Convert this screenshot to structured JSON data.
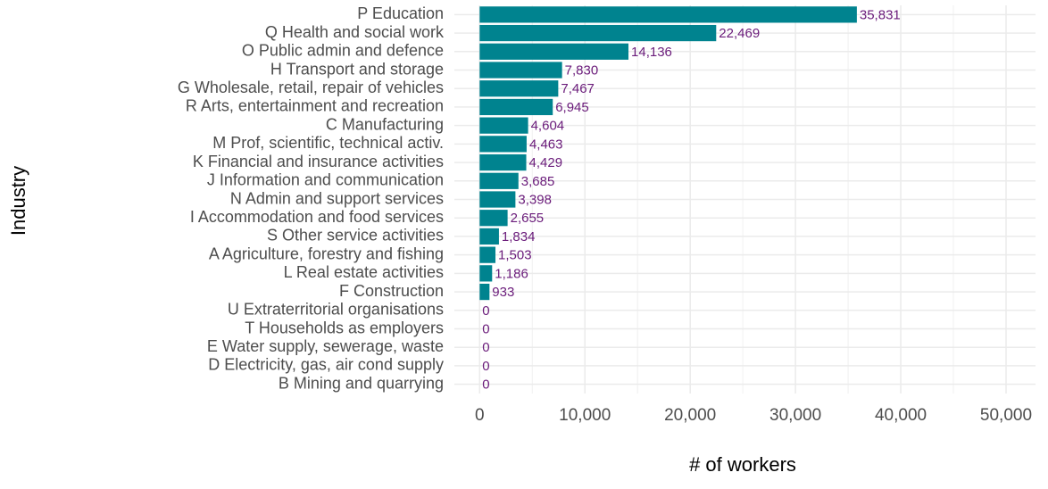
{
  "chart_data": {
    "type": "barh",
    "xlabel": "# of workers",
    "ylabel": "Industry",
    "categories": [
      "P  Education",
      "Q  Health and social work",
      "O  Public admin and defence",
      "H  Transport and storage",
      "G  Wholesale, retail, repair of vehicles",
      "R  Arts, entertainment and recreation",
      "C  Manufacturing",
      "M  Prof, scientific, technical activ.",
      "K  Financial and insurance activities",
      "J  Information and communication",
      "N  Admin and support services",
      "I  Accommodation and food services",
      "S  Other service activities",
      "A  Agriculture, forestry and fishing",
      "L  Real estate activities",
      "F  Construction",
      "U  Extraterritorial organisations",
      "T  Households as employers",
      "E  Water supply, sewerage, waste",
      "D  Electricity, gas, air cond supply",
      "B  Mining and quarrying"
    ],
    "values": [
      35831,
      22469,
      14136,
      7830,
      7467,
      6945,
      4604,
      4463,
      4429,
      3685,
      3398,
      2655,
      1834,
      1503,
      1186,
      933,
      0,
      0,
      0,
      0,
      0
    ],
    "value_labels": [
      "35,831",
      "22,469",
      "14,136",
      "7,830",
      "7,467",
      "6,945",
      "4,604",
      "4,463",
      "4,429",
      "3,685",
      "3,398",
      "2,655",
      "1,834",
      "1,503",
      "1,186",
      "933",
      "0",
      "0",
      "0",
      "0",
      "0"
    ],
    "color": "#00838f",
    "label_color": "#6a1b7a",
    "xlim": [
      -2400,
      52800
    ],
    "xticks": [
      0,
      {
        "value": 10000,
        "label": "10,000"
      },
      {
        "value": 20000,
        "label": "20,000"
      },
      {
        "value": 30000,
        "label": "30,000"
      },
      {
        "value": 40000,
        "label": "40,000"
      },
      {
        "value": 50000,
        "label": "50,000"
      }
    ],
    "xminor": [
      5000,
      15000,
      25000,
      35000,
      45000
    ],
    "grid": true
  }
}
